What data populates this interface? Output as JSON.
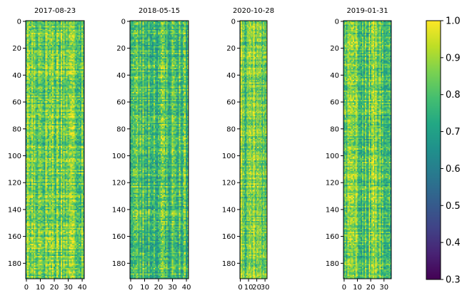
{
  "chart_data": [
    {
      "type": "heatmap",
      "title": "2017-08-23",
      "rows": 192,
      "cols": 42,
      "xticks": [
        0,
        10,
        20,
        30,
        40
      ],
      "yticks": [
        0,
        20,
        40,
        60,
        80,
        100,
        120,
        140,
        160,
        180
      ],
      "mean_level": 0.86,
      "seed": 17
    },
    {
      "type": "heatmap",
      "title": "2018-05-15",
      "rows": 192,
      "cols": 42,
      "xticks": [
        0,
        10,
        20,
        30,
        40
      ],
      "yticks": [
        0,
        20,
        40,
        60,
        80,
        100,
        120,
        140,
        160,
        180
      ],
      "mean_level": 0.8,
      "seed": 23
    },
    {
      "type": "heatmap",
      "title": "2020-10-28",
      "rows": 192,
      "cols": 33,
      "xticks": [
        0,
        10,
        20,
        30
      ],
      "yticks": [
        0,
        20,
        40,
        60,
        80,
        100,
        120,
        140,
        160,
        180
      ],
      "mean_level": 0.84,
      "seed": 41
    },
    {
      "type": "heatmap",
      "title": "2019-01-31",
      "rows": 192,
      "cols": 36,
      "xticks": [
        0,
        10,
        20,
        30
      ],
      "yticks": [
        0,
        20,
        40,
        60,
        80,
        100,
        120,
        140,
        160,
        180
      ],
      "mean_level": 0.84,
      "seed": 59
    }
  ],
  "colorbar": {
    "colormap": "viridis",
    "range": [
      0.3,
      1.0
    ],
    "ticks": [
      "0.3",
      "0.4",
      "0.5",
      "0.6",
      "0.7",
      "0.8",
      "0.9",
      "1.0"
    ]
  }
}
